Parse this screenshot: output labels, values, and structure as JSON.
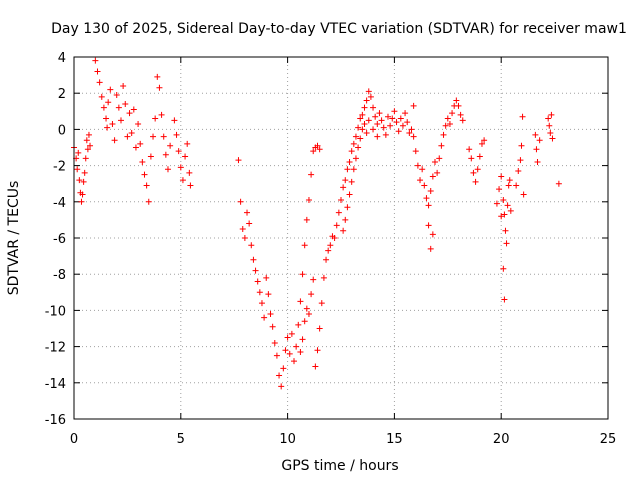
{
  "chart_data": {
    "type": "scatter",
    "title": "Day 130 of 2025, Sidereal Day-to-day VTEC variation (SDTVAR) for receiver maw1",
    "xlabel": "GPS time / hours",
    "ylabel": "SDTVAR / TECUs",
    "xlim": [
      0,
      25
    ],
    "ylim": [
      -16,
      4
    ],
    "xticks": [
      0,
      5,
      10,
      15,
      20,
      25
    ],
    "yticks": [
      -16,
      -14,
      -12,
      -10,
      -8,
      -6,
      -4,
      -2,
      0,
      2,
      4
    ],
    "grid": true,
    "marker": "+",
    "color": "#ff0000",
    "series": [
      {
        "name": "SDTVAR",
        "points": [
          [
            0.0,
            -1.0
          ],
          [
            0.1,
            -1.6
          ],
          [
            0.15,
            -2.2
          ],
          [
            0.2,
            -1.3
          ],
          [
            0.25,
            -2.8
          ],
          [
            0.3,
            -3.5
          ],
          [
            0.35,
            -4.0
          ],
          [
            0.4,
            -3.6
          ],
          [
            0.45,
            -2.9
          ],
          [
            0.5,
            -2.4
          ],
          [
            0.55,
            -1.6
          ],
          [
            0.6,
            -0.6
          ],
          [
            0.65,
            -1.1
          ],
          [
            0.7,
            -0.3
          ],
          [
            0.75,
            -0.9
          ],
          [
            1.0,
            3.8
          ],
          [
            1.1,
            3.2
          ],
          [
            1.2,
            2.6
          ],
          [
            1.3,
            1.8
          ],
          [
            1.4,
            1.2
          ],
          [
            1.5,
            0.6
          ],
          [
            1.55,
            0.1
          ],
          [
            1.6,
            1.5
          ],
          [
            1.7,
            2.2
          ],
          [
            1.8,
            0.3
          ],
          [
            1.9,
            -0.6
          ],
          [
            2.0,
            1.9
          ],
          [
            2.1,
            1.2
          ],
          [
            2.2,
            0.5
          ],
          [
            2.3,
            2.4
          ],
          [
            2.4,
            1.4
          ],
          [
            2.5,
            -0.4
          ],
          [
            2.6,
            0.9
          ],
          [
            2.7,
            -0.2
          ],
          [
            2.8,
            1.1
          ],
          [
            2.9,
            -1.0
          ],
          [
            3.0,
            0.3
          ],
          [
            3.1,
            -0.8
          ],
          [
            3.2,
            -1.8
          ],
          [
            3.3,
            -2.5
          ],
          [
            3.4,
            -3.1
          ],
          [
            3.5,
            -4.0
          ],
          [
            3.6,
            -1.5
          ],
          [
            3.7,
            -0.4
          ],
          [
            3.8,
            0.6
          ],
          [
            3.9,
            2.9
          ],
          [
            4.0,
            2.3
          ],
          [
            4.1,
            0.8
          ],
          [
            4.2,
            -0.4
          ],
          [
            4.3,
            -1.4
          ],
          [
            4.4,
            -2.2
          ],
          [
            4.5,
            -0.9
          ],
          [
            4.7,
            0.5
          ],
          [
            4.8,
            -0.3
          ],
          [
            4.9,
            -1.2
          ],
          [
            5.0,
            -2.1
          ],
          [
            5.1,
            -2.8
          ],
          [
            5.2,
            -1.5
          ],
          [
            5.3,
            -0.8
          ],
          [
            5.4,
            -2.4
          ],
          [
            5.45,
            -3.1
          ],
          [
            7.7,
            -1.7
          ],
          [
            7.8,
            -4.0
          ],
          [
            7.9,
            -5.5
          ],
          [
            8.0,
            -6.0
          ],
          [
            8.1,
            -4.6
          ],
          [
            8.2,
            -5.2
          ],
          [
            8.3,
            -6.4
          ],
          [
            8.4,
            -7.2
          ],
          [
            8.5,
            -7.8
          ],
          [
            8.6,
            -8.4
          ],
          [
            8.7,
            -9.0
          ],
          [
            8.8,
            -9.6
          ],
          [
            8.9,
            -10.4
          ],
          [
            9.0,
            -8.2
          ],
          [
            9.1,
            -9.1
          ],
          [
            9.2,
            -10.2
          ],
          [
            9.3,
            -10.9
          ],
          [
            9.4,
            -11.8
          ],
          [
            9.5,
            -12.5
          ],
          [
            9.6,
            -13.6
          ],
          [
            9.7,
            -14.2
          ],
          [
            9.8,
            -13.2
          ],
          [
            9.9,
            -12.2
          ],
          [
            10.0,
            -11.5
          ],
          [
            10.1,
            -12.4
          ],
          [
            10.2,
            -11.3
          ],
          [
            10.3,
            -12.8
          ],
          [
            10.4,
            -12.0
          ],
          [
            10.5,
            -10.8
          ],
          [
            10.6,
            -9.5
          ],
          [
            10.7,
            -8.0
          ],
          [
            10.8,
            -6.4
          ],
          [
            10.9,
            -5.0
          ],
          [
            11.0,
            -3.9
          ],
          [
            11.1,
            -2.5
          ],
          [
            11.2,
            -1.2
          ],
          [
            11.3,
            -1.0
          ],
          [
            11.4,
            -0.9
          ],
          [
            11.5,
            -1.1
          ],
          [
            10.6,
            -12.3
          ],
          [
            10.7,
            -11.6
          ],
          [
            10.8,
            -10.6
          ],
          [
            10.9,
            -9.9
          ],
          [
            11.0,
            -10.2
          ],
          [
            11.1,
            -9.1
          ],
          [
            11.2,
            -8.3
          ],
          [
            11.3,
            -13.1
          ],
          [
            11.4,
            -12.2
          ],
          [
            11.5,
            -11.0
          ],
          [
            11.6,
            -9.6
          ],
          [
            11.7,
            -8.2
          ],
          [
            11.8,
            -7.2
          ],
          [
            11.9,
            -6.7
          ],
          [
            12.0,
            -6.4
          ],
          [
            12.1,
            -5.9
          ],
          [
            12.2,
            -6.0
          ],
          [
            12.3,
            -5.3
          ],
          [
            12.4,
            -4.6
          ],
          [
            12.5,
            -3.9
          ],
          [
            12.6,
            -3.2
          ],
          [
            12.7,
            -2.8
          ],
          [
            12.8,
            -2.2
          ],
          [
            12.9,
            -1.8
          ],
          [
            13.0,
            -1.2
          ],
          [
            13.1,
            -0.8
          ],
          [
            13.2,
            -0.4
          ],
          [
            13.3,
            0.1
          ],
          [
            13.4,
            0.6
          ],
          [
            13.5,
            0.8
          ],
          [
            13.6,
            1.2
          ],
          [
            13.7,
            1.6
          ],
          [
            13.8,
            2.1
          ],
          [
            13.9,
            1.8
          ],
          [
            14.0,
            1.2
          ],
          [
            14.1,
            0.7
          ],
          [
            14.2,
            0.3
          ],
          [
            14.3,
            0.9
          ],
          [
            14.4,
            0.5
          ],
          [
            14.5,
            0.1
          ],
          [
            14.6,
            -0.3
          ],
          [
            14.7,
            0.7
          ],
          [
            14.8,
            0.2
          ],
          [
            14.9,
            0.6
          ],
          [
            15.0,
            1.0
          ],
          [
            15.1,
            0.4
          ],
          [
            15.2,
            -0.1
          ],
          [
            15.3,
            0.6
          ],
          [
            15.4,
            0.2
          ],
          [
            15.5,
            0.9
          ],
          [
            15.6,
            0.4
          ],
          [
            15.7,
            -0.2
          ],
          [
            15.8,
            0.0
          ],
          [
            15.9,
            1.3
          ],
          [
            12.6,
            -5.6
          ],
          [
            12.7,
            -5.0
          ],
          [
            12.8,
            -4.3
          ],
          [
            12.9,
            -3.6
          ],
          [
            13.0,
            -2.9
          ],
          [
            13.1,
            -2.2
          ],
          [
            13.2,
            -1.6
          ],
          [
            13.3,
            -1.0
          ],
          [
            13.4,
            -0.5
          ],
          [
            13.5,
            0.0
          ],
          [
            13.6,
            0.3
          ],
          [
            13.7,
            -0.2
          ],
          [
            13.8,
            0.5
          ],
          [
            14.0,
            0.0
          ],
          [
            14.2,
            -0.4
          ],
          [
            15.9,
            -0.4
          ],
          [
            16.0,
            -1.2
          ],
          [
            16.1,
            -2.0
          ],
          [
            16.2,
            -2.8
          ],
          [
            16.3,
            -2.2
          ],
          [
            16.4,
            -3.1
          ],
          [
            16.5,
            -3.8
          ],
          [
            16.6,
            -4.2
          ],
          [
            16.7,
            -3.4
          ],
          [
            16.8,
            -2.6
          ],
          [
            16.9,
            -1.8
          ],
          [
            17.0,
            -2.4
          ],
          [
            17.1,
            -1.6
          ],
          [
            17.2,
            -0.9
          ],
          [
            17.3,
            -0.3
          ],
          [
            17.4,
            0.2
          ],
          [
            17.5,
            0.6
          ],
          [
            17.6,
            0.3
          ],
          [
            17.7,
            0.9
          ],
          [
            17.8,
            1.3
          ],
          [
            17.9,
            1.6
          ],
          [
            18.0,
            1.3
          ],
          [
            18.1,
            0.8
          ],
          [
            18.2,
            0.5
          ],
          [
            16.6,
            -5.3
          ],
          [
            16.7,
            -6.6
          ],
          [
            16.8,
            -5.8
          ],
          [
            18.5,
            -1.1
          ],
          [
            18.6,
            -1.6
          ],
          [
            18.7,
            -2.4
          ],
          [
            18.8,
            -2.9
          ],
          [
            18.9,
            -2.2
          ],
          [
            19.0,
            -1.5
          ],
          [
            19.1,
            -0.8
          ],
          [
            19.2,
            -0.6
          ],
          [
            19.8,
            -4.1
          ],
          [
            19.9,
            -3.3
          ],
          [
            20.0,
            -2.6
          ],
          [
            20.1,
            -3.9
          ],
          [
            20.15,
            -4.7
          ],
          [
            20.2,
            -5.6
          ],
          [
            20.25,
            -6.3
          ],
          [
            20.3,
            -4.2
          ],
          [
            20.35,
            -3.1
          ],
          [
            20.4,
            -2.8
          ],
          [
            20.45,
            -4.5
          ],
          [
            20.1,
            -7.7
          ],
          [
            20.15,
            -9.4
          ],
          [
            20.0,
            -4.8
          ],
          [
            20.7,
            -3.1
          ],
          [
            20.8,
            -2.3
          ],
          [
            20.9,
            -1.7
          ],
          [
            20.95,
            -0.9
          ],
          [
            21.0,
            0.7
          ],
          [
            21.05,
            -3.6
          ],
          [
            21.6,
            -0.3
          ],
          [
            21.65,
            -1.1
          ],
          [
            21.7,
            -1.8
          ],
          [
            21.8,
            -0.6
          ],
          [
            22.2,
            0.6
          ],
          [
            22.25,
            0.2
          ],
          [
            22.3,
            -0.2
          ],
          [
            22.35,
            0.8
          ],
          [
            22.4,
            -0.5
          ],
          [
            22.7,
            -3.0
          ]
        ]
      }
    ]
  }
}
